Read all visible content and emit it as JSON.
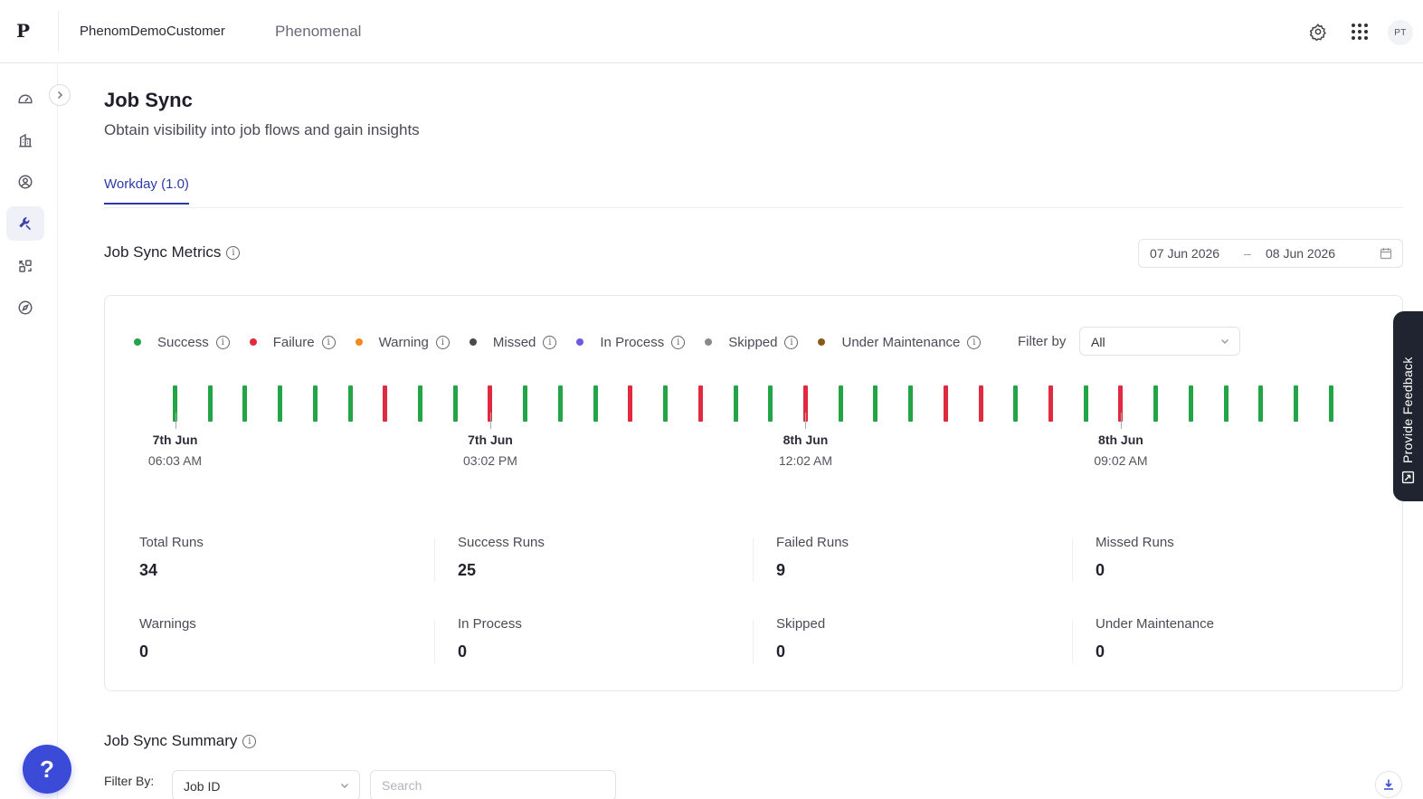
{
  "header": {
    "logo_glyph": "P",
    "customer_name": "PhenomDemoCustomer",
    "org_name": "Phenomenal",
    "avatar_initials": "PT",
    "icons": [
      "gear-icon",
      "apps-grid-icon"
    ]
  },
  "sidebar": {
    "items": [
      {
        "name": "dashboard-icon",
        "active": false
      },
      {
        "name": "building-icon",
        "active": false
      },
      {
        "name": "user-circle-icon",
        "active": false
      },
      {
        "name": "wrench-icon",
        "active": true
      },
      {
        "name": "integrations-icon",
        "active": false
      },
      {
        "name": "compass-icon",
        "active": false
      }
    ],
    "help_label": "?"
  },
  "page": {
    "title": "Job Sync",
    "subtitle": "Obtain visibility into job flows and gain insights",
    "tabs": [
      {
        "label": "Workday (1.0)",
        "active": true
      }
    ]
  },
  "metrics": {
    "title": "Job Sync Metrics",
    "date_from": "07 Jun 2026",
    "date_separator": "–",
    "date_to": "08 Jun 2026",
    "legend": [
      {
        "label": "Success",
        "color": "#22a447"
      },
      {
        "label": "Failure",
        "color": "#e02a40"
      },
      {
        "label": "Warning",
        "color": "#f08a1c"
      },
      {
        "label": "Missed",
        "color": "#4a4a4a"
      },
      {
        "label": "In Process",
        "color": "#6a5be0"
      },
      {
        "label": "Skipped",
        "color": "#8a8a8a"
      },
      {
        "label": "Under Maintenance",
        "color": "#8a5a1a"
      }
    ],
    "filter_label": "Filter by",
    "filter_value": "All",
    "timeline": {
      "runs": [
        "success",
        "success",
        "success",
        "success",
        "success",
        "success",
        "failure",
        "success",
        "success",
        "failure",
        "success",
        "success",
        "success",
        "failure",
        "success",
        "failure",
        "success",
        "success",
        "failure",
        "success",
        "success",
        "success",
        "failure",
        "failure",
        "success",
        "failure",
        "success",
        "failure",
        "success",
        "success",
        "success",
        "success",
        "success",
        "success"
      ],
      "ticks": [
        {
          "run_index": 0,
          "date": "7th Jun",
          "time": "06:03 AM"
        },
        {
          "run_index": 9,
          "date": "7th Jun",
          "time": "03:02 PM"
        },
        {
          "run_index": 18,
          "date": "8th Jun",
          "time": "12:02 AM"
        },
        {
          "run_index": 27,
          "date": "8th Jun",
          "time": "09:02 AM"
        }
      ]
    },
    "stats": [
      {
        "label": "Total Runs",
        "value": "34"
      },
      {
        "label": "Success Runs",
        "value": "25"
      },
      {
        "label": "Failed Runs",
        "value": "9"
      },
      {
        "label": "Missed Runs",
        "value": "0"
      },
      {
        "label": "Warnings",
        "value": "0"
      },
      {
        "label": "In Process",
        "value": "0"
      },
      {
        "label": "Skipped",
        "value": "0"
      },
      {
        "label": "Under Maintenance",
        "value": "0"
      }
    ]
  },
  "feedback": {
    "label": "Provide Feedback"
  },
  "summary": {
    "title": "Job Sync Summary",
    "filter_label": "Filter By:",
    "filter_value": "Job ID",
    "search_placeholder": "Search"
  }
}
